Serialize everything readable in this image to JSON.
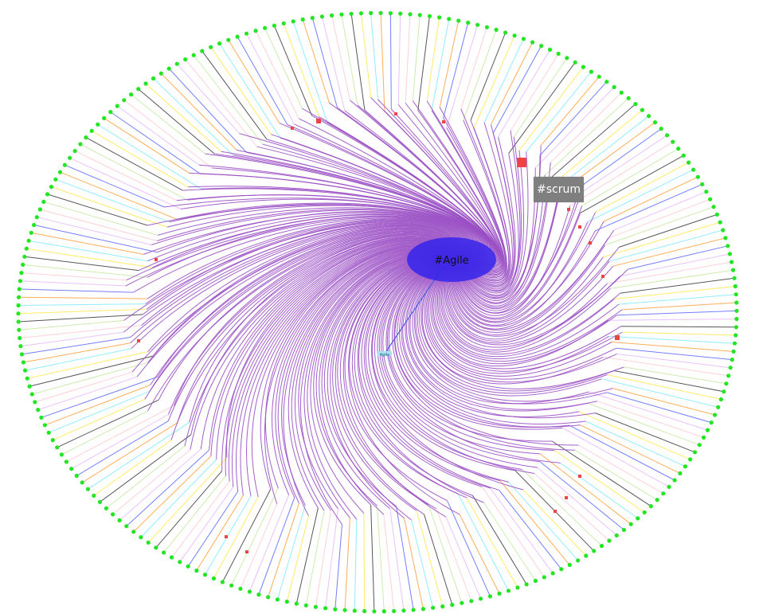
{
  "graph": {
    "center_label": "#Agile",
    "secondary_label": "Agile",
    "tooltip": "#scrum"
  },
  "colors": {
    "leaf_node": "#22e622",
    "hub_node": "#ee4444",
    "center_node": "#2a1ff0",
    "curve_edge": "#9a4fc4",
    "spoke_palette": [
      "#3a3a3a",
      "#ffe84a",
      "#7fe9ff",
      "#ff9f3a",
      "#5a68ff",
      "#e8b6ff",
      "#ffc8d2",
      "#c6e8a0"
    ]
  }
}
